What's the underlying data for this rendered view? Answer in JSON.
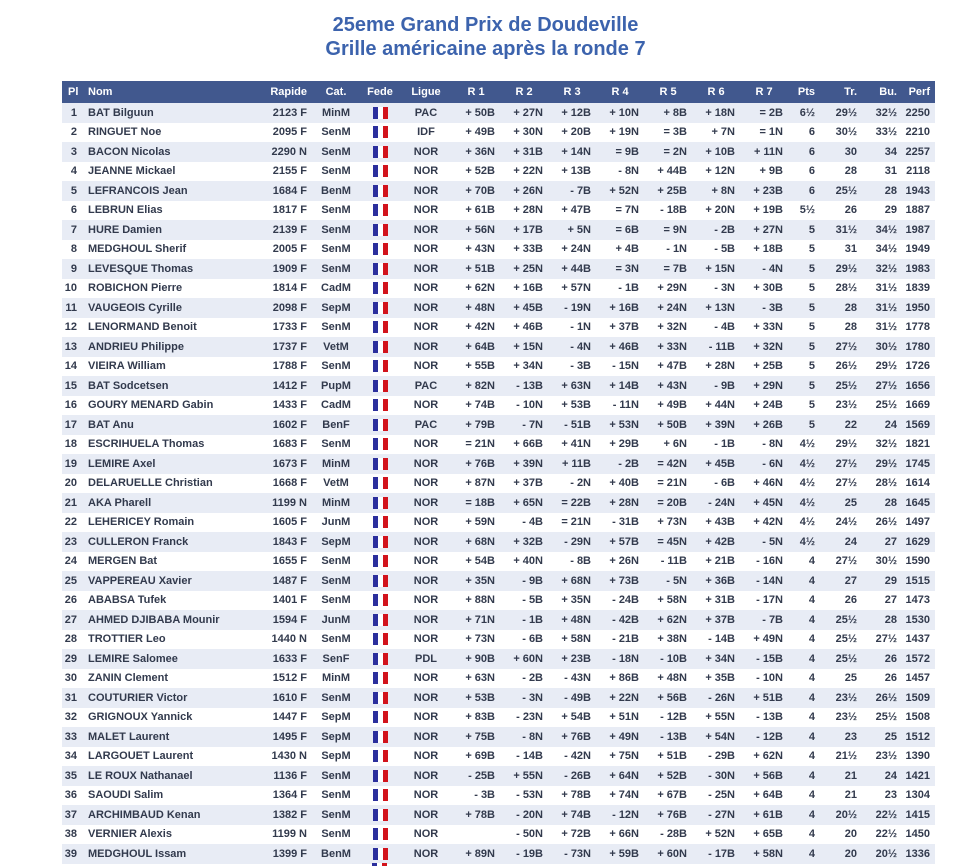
{
  "title": {
    "line1": "25eme Grand Prix de Doudeville",
    "line2": "Grille américaine après la ronde 7"
  },
  "colors": {
    "header_bg": "#41588e",
    "header_text": "#ffffff",
    "alt_row_bg": "#e8ecf5",
    "title_blue": "#3c63ad",
    "flag_blue": "#2b2f9d",
    "flag_red": "#d2131c"
  },
  "table": {
    "headers": [
      "Pl",
      "Nom",
      "Rapide",
      "Cat.",
      "Fede",
      "Ligue",
      "R 1",
      "R 2",
      "R 3",
      "R 4",
      "R 5",
      "R 6",
      "R 7",
      "Pts",
      "Tr.",
      "Bu.",
      "Perf"
    ],
    "fede_icon": "france-flag-icon",
    "rows": [
      {
        "pl": "1",
        "nom": "BAT Bilguun",
        "rapide": "2123 F",
        "cat": "MinM",
        "ligue": "PAC",
        "r": [
          "+ 50B",
          "+ 27N",
          "+ 12B",
          "+ 10N",
          "+ 8B",
          "+ 18N",
          "= 2B"
        ],
        "pts": "6½",
        "tr": "29½",
        "bu": "32½",
        "perf": "2250"
      },
      {
        "pl": "2",
        "nom": "RINGUET Noe",
        "rapide": "2095 F",
        "cat": "SenM",
        "ligue": "IDF",
        "r": [
          "+ 49B",
          "+ 30N",
          "+ 20B",
          "+ 19N",
          "= 3B",
          "+ 7N",
          "= 1N"
        ],
        "pts": "6",
        "tr": "30½",
        "bu": "33½",
        "perf": "2210"
      },
      {
        "pl": "3",
        "nom": "BACON Nicolas",
        "rapide": "2290 N",
        "cat": "SenM",
        "ligue": "NOR",
        "r": [
          "+ 36N",
          "+ 31B",
          "+ 14N",
          "= 9B",
          "= 2N",
          "+ 10B",
          "+ 11N"
        ],
        "pts": "6",
        "tr": "30",
        "bu": "34",
        "perf": "2257"
      },
      {
        "pl": "4",
        "nom": "JEANNE Mickael",
        "rapide": "2155 F",
        "cat": "SenM",
        "ligue": "NOR",
        "r": [
          "+ 52B",
          "+ 22N",
          "+ 13B",
          "- 8N",
          "+ 44B",
          "+ 12N",
          "+ 9B"
        ],
        "pts": "6",
        "tr": "28",
        "bu": "31",
        "perf": "2118"
      },
      {
        "pl": "5",
        "nom": "LEFRANCOIS Jean",
        "rapide": "1684 F",
        "cat": "BenM",
        "ligue": "NOR",
        "r": [
          "+ 70B",
          "+ 26N",
          "- 7B",
          "+ 52N",
          "+ 25B",
          "+ 8N",
          "+ 23B"
        ],
        "pts": "6",
        "tr": "25½",
        "bu": "28",
        "perf": "1943"
      },
      {
        "pl": "6",
        "nom": "LEBRUN Elias",
        "rapide": "1817 F",
        "cat": "SenM",
        "ligue": "NOR",
        "r": [
          "+ 61B",
          "+ 28N",
          "+ 47B",
          "= 7N",
          "- 18B",
          "+ 20N",
          "+ 19B"
        ],
        "pts": "5½",
        "tr": "26",
        "bu": "29",
        "perf": "1887"
      },
      {
        "pl": "7",
        "nom": "HURE Damien",
        "rapide": "2139 F",
        "cat": "SenM",
        "ligue": "NOR",
        "r": [
          "+ 56N",
          "+ 17B",
          "+ 5N",
          "= 6B",
          "= 9N",
          "- 2B",
          "+ 27N"
        ],
        "pts": "5",
        "tr": "31½",
        "bu": "34½",
        "perf": "1987"
      },
      {
        "pl": "8",
        "nom": "MEDGHOUL Sherif",
        "rapide": "2005 F",
        "cat": "SenM",
        "ligue": "NOR",
        "r": [
          "+ 43N",
          "+ 33B",
          "+ 24N",
          "+ 4B",
          "- 1N",
          "- 5B",
          "+ 18B"
        ],
        "pts": "5",
        "tr": "31",
        "bu": "34½",
        "perf": "1949"
      },
      {
        "pl": "9",
        "nom": "LEVESQUE Thomas",
        "rapide": "1909 F",
        "cat": "SenM",
        "ligue": "NOR",
        "r": [
          "+ 51B",
          "+ 25N",
          "+ 44B",
          "= 3N",
          "= 7B",
          "+ 15N",
          "- 4N"
        ],
        "pts": "5",
        "tr": "29½",
        "bu": "32½",
        "perf": "1983"
      },
      {
        "pl": "10",
        "nom": "ROBICHON Pierre",
        "rapide": "1814 F",
        "cat": "CadM",
        "ligue": "NOR",
        "r": [
          "+ 62N",
          "+ 16B",
          "+ 57N",
          "- 1B",
          "+ 29N",
          "- 3N",
          "+ 30B"
        ],
        "pts": "5",
        "tr": "28½",
        "bu": "31½",
        "perf": "1839"
      },
      {
        "pl": "11",
        "nom": "VAUGEOIS Cyrille",
        "rapide": "2098 F",
        "cat": "SepM",
        "ligue": "NOR",
        "r": [
          "+ 48N",
          "+ 45B",
          "- 19N",
          "+ 16B",
          "+ 24N",
          "+ 13N",
          "- 3B"
        ],
        "pts": "5",
        "tr": "28",
        "bu": "31½",
        "perf": "1950"
      },
      {
        "pl": "12",
        "nom": "LENORMAND Benoit",
        "rapide": "1733 F",
        "cat": "SenM",
        "ligue": "NOR",
        "r": [
          "+ 42N",
          "+ 46B",
          "- 1N",
          "+ 37B",
          "+ 32N",
          "- 4B",
          "+ 33N"
        ],
        "pts": "5",
        "tr": "28",
        "bu": "31½",
        "perf": "1778"
      },
      {
        "pl": "13",
        "nom": "ANDRIEU Philippe",
        "rapide": "1737 F",
        "cat": "VetM",
        "ligue": "NOR",
        "r": [
          "+ 64B",
          "+ 15N",
          "- 4N",
          "+ 46B",
          "+ 33N",
          "- 11B",
          "+ 32N"
        ],
        "pts": "5",
        "tr": "27½",
        "bu": "30½",
        "perf": "1780"
      },
      {
        "pl": "14",
        "nom": "VIEIRA William",
        "rapide": "1788 F",
        "cat": "SenM",
        "ligue": "NOR",
        "r": [
          "+ 55B",
          "+ 34N",
          "- 3B",
          "- 15N",
          "+ 47B",
          "+ 28N",
          "+ 25B"
        ],
        "pts": "5",
        "tr": "26½",
        "bu": "29½",
        "perf": "1726"
      },
      {
        "pl": "15",
        "nom": "BAT Sodcetsen",
        "rapide": "1412 F",
        "cat": "PupM",
        "ligue": "PAC",
        "r": [
          "+ 82N",
          "- 13B",
          "+ 63N",
          "+ 14B",
          "+ 43N",
          "- 9B",
          "+ 29N"
        ],
        "pts": "5",
        "tr": "25½",
        "bu": "27½",
        "perf": "1656"
      },
      {
        "pl": "16",
        "nom": "GOURY MENARD Gabin",
        "rapide": "1433 F",
        "cat": "CadM",
        "ligue": "NOR",
        "r": [
          "+ 74B",
          "- 10N",
          "+ 53B",
          "- 11N",
          "+ 49B",
          "+ 44N",
          "+ 24B"
        ],
        "pts": "5",
        "tr": "23½",
        "bu": "25½",
        "perf": "1669"
      },
      {
        "pl": "17",
        "nom": "BAT Anu",
        "rapide": "1602 F",
        "cat": "BenF",
        "ligue": "PAC",
        "r": [
          "+ 79B",
          "- 7N",
          "- 51B",
          "+ 53N",
          "+ 50B",
          "+ 39N",
          "+ 26B"
        ],
        "pts": "5",
        "tr": "22",
        "bu": "24",
        "perf": "1569"
      },
      {
        "pl": "18",
        "nom": "ESCRIHUELA Thomas",
        "rapide": "1683 F",
        "cat": "SenM",
        "ligue": "NOR",
        "r": [
          "= 21N",
          "+ 66B",
          "+ 41N",
          "+ 29B",
          "+ 6N",
          "- 1B",
          "- 8N"
        ],
        "pts": "4½",
        "tr": "29½",
        "bu": "32½",
        "perf": "1821"
      },
      {
        "pl": "19",
        "nom": "LEMIRE Axel",
        "rapide": "1673 F",
        "cat": "MinM",
        "ligue": "NOR",
        "r": [
          "+ 76B",
          "+ 39N",
          "+ 11B",
          "- 2B",
          "= 42N",
          "+ 45B",
          "- 6N"
        ],
        "pts": "4½",
        "tr": "27½",
        "bu": "29½",
        "perf": "1745"
      },
      {
        "pl": "20",
        "nom": "DELARUELLE Christian",
        "rapide": "1668 F",
        "cat": "VetM",
        "ligue": "NOR",
        "r": [
          "+ 87N",
          "+ 37B",
          "- 2N",
          "+ 40B",
          "= 21N",
          "- 6B",
          "+ 46N"
        ],
        "pts": "4½",
        "tr": "27½",
        "bu": "28½",
        "perf": "1614"
      },
      {
        "pl": "21",
        "nom": "AKA Pharell",
        "rapide": "1199 N",
        "cat": "MinM",
        "ligue": "NOR",
        "r": [
          "= 18B",
          "+ 65N",
          "= 22B",
          "+ 28N",
          "= 20B",
          "- 24N",
          "+ 45N"
        ],
        "pts": "4½",
        "tr": "25",
        "bu": "28",
        "perf": "1645"
      },
      {
        "pl": "22",
        "nom": "LEHERICEY Romain",
        "rapide": "1605 F",
        "cat": "JunM",
        "ligue": "NOR",
        "r": [
          "+ 59N",
          "- 4B",
          "= 21N",
          "- 31B",
          "+ 73N",
          "+ 43B",
          "+ 42N"
        ],
        "pts": "4½",
        "tr": "24½",
        "bu": "26½",
        "perf": "1497"
      },
      {
        "pl": "23",
        "nom": "CULLERON Franck",
        "rapide": "1843 F",
        "cat": "SepM",
        "ligue": "NOR",
        "r": [
          "+ 68N",
          "+ 32B",
          "- 29N",
          "+ 57B",
          "= 45N",
          "+ 42B",
          "- 5N"
        ],
        "pts": "4½",
        "tr": "24",
        "bu": "27",
        "perf": "1629"
      },
      {
        "pl": "24",
        "nom": "MERGEN Bat",
        "rapide": "1655 F",
        "cat": "SenM",
        "ligue": "NOR",
        "r": [
          "+ 54B",
          "+ 40N",
          "- 8B",
          "+ 26N",
          "- 11B",
          "+ 21B",
          "- 16N"
        ],
        "pts": "4",
        "tr": "27½",
        "bu": "30½",
        "perf": "1590"
      },
      {
        "pl": "25",
        "nom": "VAPPEREAU Xavier",
        "rapide": "1487 F",
        "cat": "SenM",
        "ligue": "NOR",
        "r": [
          "+ 35N",
          "- 9B",
          "+ 68N",
          "+ 73B",
          "- 5N",
          "+ 36B",
          "- 14N"
        ],
        "pts": "4",
        "tr": "27",
        "bu": "29",
        "perf": "1515"
      },
      {
        "pl": "26",
        "nom": "ABABSA Tufek",
        "rapide": "1401 F",
        "cat": "SenM",
        "ligue": "NOR",
        "r": [
          "+ 88N",
          "- 5B",
          "+ 35N",
          "- 24B",
          "+ 58N",
          "+ 31B",
          "- 17N"
        ],
        "pts": "4",
        "tr": "26",
        "bu": "27",
        "perf": "1473"
      },
      {
        "pl": "27",
        "nom": "AHMED DJIBABA Mounir",
        "rapide": "1594 F",
        "cat": "JunM",
        "ligue": "NOR",
        "r": [
          "+ 71N",
          "- 1B",
          "+ 48N",
          "- 42B",
          "+ 62N",
          "+ 37B",
          "- 7B"
        ],
        "pts": "4",
        "tr": "25½",
        "bu": "28",
        "perf": "1530"
      },
      {
        "pl": "28",
        "nom": "TROTTIER Leo",
        "rapide": "1440 N",
        "cat": "SenM",
        "ligue": "NOR",
        "r": [
          "+ 73N",
          "- 6B",
          "+ 58N",
          "- 21B",
          "+ 38N",
          "- 14B",
          "+ 49N"
        ],
        "pts": "4",
        "tr": "25½",
        "bu": "27½",
        "perf": "1437"
      },
      {
        "pl": "29",
        "nom": "LEMIRE Salomee",
        "rapide": "1633 F",
        "cat": "SenF",
        "ligue": "PDL",
        "r": [
          "+ 90B",
          "+ 60N",
          "+ 23B",
          "- 18N",
          "- 10B",
          "+ 34N",
          "- 15B"
        ],
        "pts": "4",
        "tr": "25½",
        "bu": "26",
        "perf": "1572"
      },
      {
        "pl": "30",
        "nom": "ZANIN Clement",
        "rapide": "1512 F",
        "cat": "MinM",
        "ligue": "NOR",
        "r": [
          "+ 63N",
          "- 2B",
          "- 43N",
          "+ 86B",
          "+ 48N",
          "+ 35B",
          "- 10N"
        ],
        "pts": "4",
        "tr": "25",
        "bu": "26",
        "perf": "1457"
      },
      {
        "pl": "31",
        "nom": "COUTURIER Victor",
        "rapide": "1610 F",
        "cat": "SenM",
        "ligue": "NOR",
        "r": [
          "+ 53B",
          "- 3N",
          "- 49B",
          "+ 22N",
          "+ 56B",
          "- 26N",
          "+ 51B"
        ],
        "pts": "4",
        "tr": "23½",
        "bu": "26½",
        "perf": "1509"
      },
      {
        "pl": "32",
        "nom": "GRIGNOUX Yannick",
        "rapide": "1447 F",
        "cat": "SepM",
        "ligue": "NOR",
        "r": [
          "+ 83B",
          "- 23N",
          "+ 54B",
          "+ 51N",
          "- 12B",
          "+ 55N",
          "- 13B"
        ],
        "pts": "4",
        "tr": "23½",
        "bu": "25½",
        "perf": "1508"
      },
      {
        "pl": "33",
        "nom": "MALET Laurent",
        "rapide": "1495 F",
        "cat": "SepM",
        "ligue": "NOR",
        "r": [
          "+ 75B",
          "- 8N",
          "+ 76B",
          "+ 49N",
          "- 13B",
          "+ 54N",
          "- 12B"
        ],
        "pts": "4",
        "tr": "23",
        "bu": "25",
        "perf": "1512"
      },
      {
        "pl": "34",
        "nom": "LARGOUET Laurent",
        "rapide": "1430 N",
        "cat": "SepM",
        "ligue": "NOR",
        "r": [
          "+ 69B",
          "- 14B",
          "- 42N",
          "+ 75N",
          "+ 51B",
          "- 29B",
          "+ 62N"
        ],
        "pts": "4",
        "tr": "21½",
        "bu": "23½",
        "perf": "1390"
      },
      {
        "pl": "35",
        "nom": "LE ROUX Nathanael",
        "rapide": "1136 F",
        "cat": "SenM",
        "ligue": "NOR",
        "r": [
          "- 25B",
          "+ 55N",
          "- 26B",
          "+ 64N",
          "+ 52B",
          "- 30N",
          "+ 56B"
        ],
        "pts": "4",
        "tr": "21",
        "bu": "24",
        "perf": "1421"
      },
      {
        "pl": "36",
        "nom": "SAOUDI Salim",
        "rapide": "1364 F",
        "cat": "SenM",
        "ligue": "NOR",
        "r": [
          "- 3B",
          "- 53N",
          "+ 78B",
          "+ 74N",
          "+ 67B",
          "- 25N",
          "+ 64B"
        ],
        "pts": "4",
        "tr": "21",
        "bu": "23",
        "perf": "1304"
      },
      {
        "pl": "37",
        "nom": "ARCHIMBAUD Kenan",
        "rapide": "1382 F",
        "cat": "SenM",
        "ligue": "NOR",
        "r": [
          "+ 78B",
          "- 20N",
          "+ 74B",
          "- 12N",
          "+ 76B",
          "- 27N",
          "+ 61B"
        ],
        "pts": "4",
        "tr": "20½",
        "bu": "22½",
        "perf": "1415"
      },
      {
        "pl": "38",
        "nom": "VERNIER Alexis",
        "rapide": "1199 N",
        "cat": "SenM",
        "ligue": "NOR",
        "r": [
          "",
          "- 50N",
          "+ 72B",
          "+ 66N",
          "- 28B",
          "+ 52N",
          "+ 65B"
        ],
        "pts": "4",
        "tr": "20",
        "bu": "22½",
        "perf": "1450"
      },
      {
        "pl": "39",
        "nom": "MEDGHOUL Issam",
        "rapide": "1399 F",
        "cat": "BenM",
        "ligue": "NOR",
        "r": [
          "+ 89N",
          "- 19B",
          "- 73N",
          "+ 59B",
          "+ 60N",
          "- 17B",
          "+ 58N"
        ],
        "pts": "4",
        "tr": "20",
        "bu": "20½",
        "perf": "1336"
      }
    ]
  }
}
